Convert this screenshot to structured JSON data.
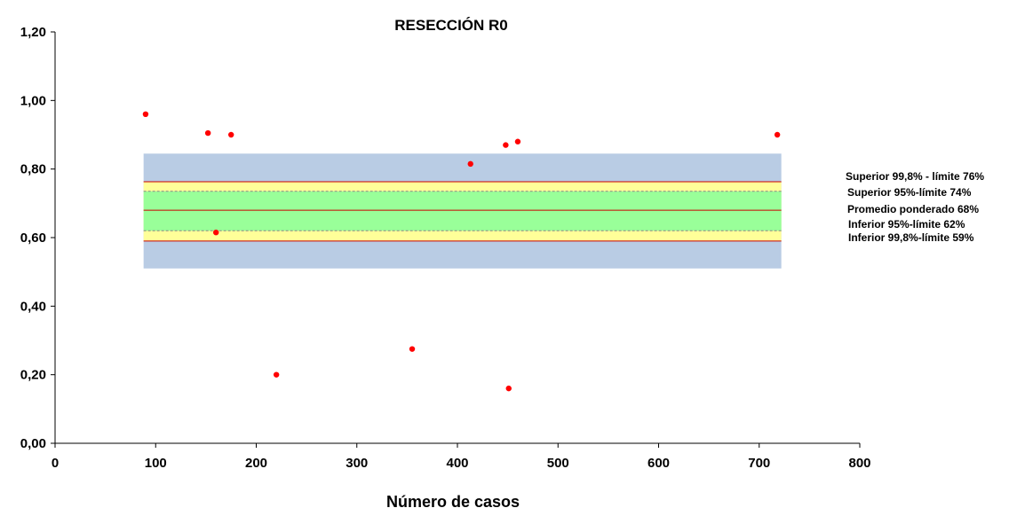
{
  "chart_data": {
    "type": "scatter",
    "title": "RESECCIÓN R0",
    "xlabel": "Número de casos",
    "ylabel": "",
    "xlim": [
      0,
      800
    ],
    "ylim": [
      0,
      1.2
    ],
    "x_ticks": [
      0,
      100,
      200,
      300,
      400,
      500,
      600,
      700,
      800
    ],
    "x_tick_labels": [
      "0",
      "100",
      "200",
      "300",
      "400",
      "500",
      "600",
      "700",
      "800"
    ],
    "y_ticks": [
      0,
      0.2,
      0.4,
      0.6,
      0.8,
      1.0,
      1.2
    ],
    "y_tick_labels": [
      "0,00",
      "0,20",
      "0,40",
      "0,60",
      "0,80",
      "1,00",
      "1,20"
    ],
    "grid": false,
    "series": [
      {
        "color": "#ff0000",
        "points": [
          {
            "x": 90,
            "y": 0.96
          },
          {
            "x": 152,
            "y": 0.905
          },
          {
            "x": 160,
            "y": 0.615
          },
          {
            "x": 175,
            "y": 0.9
          },
          {
            "x": 220,
            "y": 0.2
          },
          {
            "x": 355,
            "y": 0.275
          },
          {
            "x": 413,
            "y": 0.815
          },
          {
            "x": 448,
            "y": 0.87
          },
          {
            "x": 451,
            "y": 0.16
          },
          {
            "x": 460,
            "y": 0.88
          },
          {
            "x": 718,
            "y": 0.9
          }
        ]
      }
    ],
    "bands": {
      "x_range": [
        88,
        722
      ],
      "outer": {
        "y_range": [
          0.51,
          0.845
        ],
        "color": "#b9cce4"
      },
      "yellow": {
        "y_range": [
          0.59,
          0.763
        ],
        "color": "#ffff99"
      },
      "green": {
        "y_range": [
          0.62,
          0.735
        ],
        "color": "#99ff99"
      }
    },
    "reference_lines": [
      {
        "y": 0.763,
        "label": "Superior 99,8% - límite 76%",
        "color": "#cc0000",
        "style": "solid"
      },
      {
        "y": 0.735,
        "label": "Superior 95%-límite 74%",
        "color": "#888888",
        "style": "dashed"
      },
      {
        "y": 0.68,
        "label": "Promedio ponderado 68%",
        "color": "#cc0000",
        "style": "solid"
      },
      {
        "y": 0.62,
        "label": "Inferior 95%-límite 62%",
        "color": "#888888",
        "style": "dashed"
      },
      {
        "y": 0.59,
        "label": "Inferior 99,8%-límite 59%",
        "color": "#cc0000",
        "style": "solid"
      }
    ],
    "legend_placement": "right"
  }
}
